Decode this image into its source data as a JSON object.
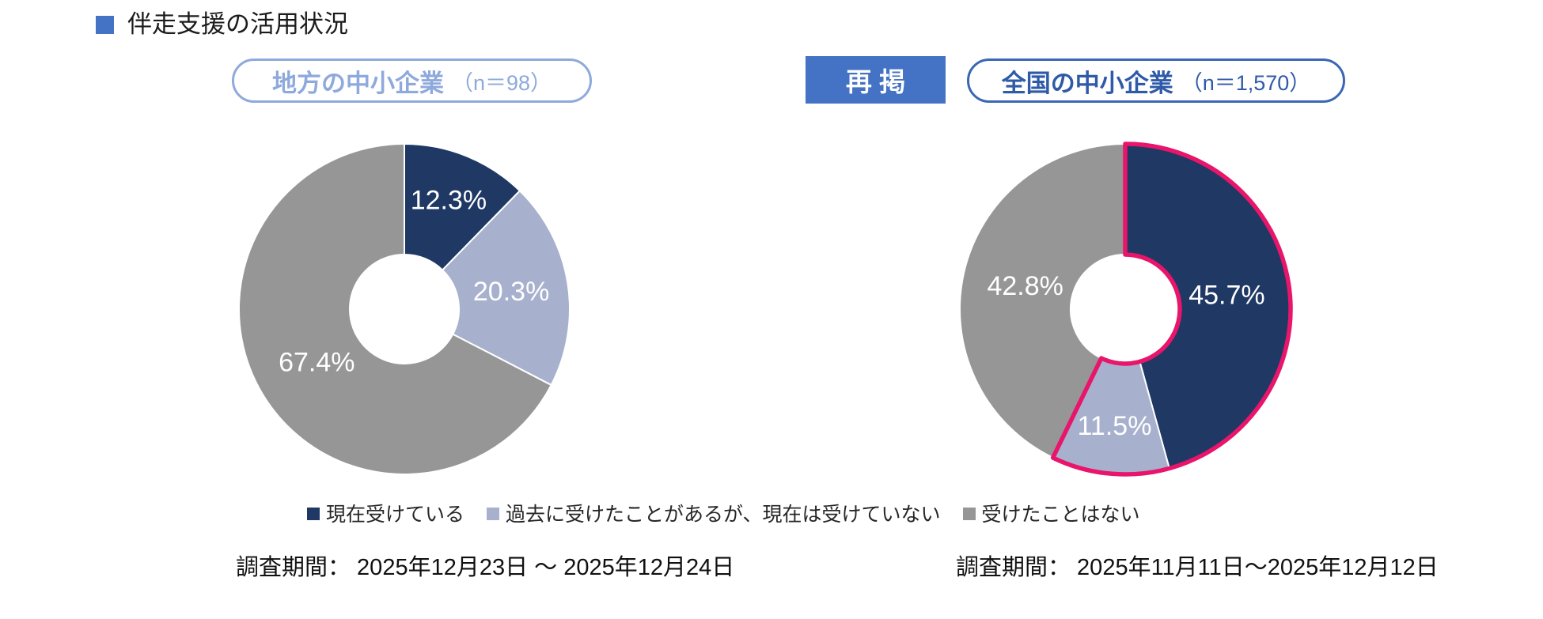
{
  "title": {
    "text": "伴走支援の活用状況"
  },
  "colors": {
    "accent_blue": "#4472c4",
    "pill_left_border": "#8ea9dc",
    "pill_left_text": "#8ea9dc",
    "pill_right_border": "#3a67b5",
    "pill_right_text": "#2f5aa8",
    "highlight_pink": "#e8156b",
    "navy": "#1f3864",
    "light_blue": "#a7b1cd",
    "gray": "#969696"
  },
  "left_panel": {
    "pill_label": "地方の中小企業",
    "pill_n": "（n＝98）",
    "caption": "調査期間： 2025年12月23日 〜 2025年12月24日"
  },
  "right_panel": {
    "badge": "再掲",
    "pill_label": "全国の中小企業",
    "pill_n": "（n＝1,570）",
    "caption": "調査期間： 2025年11月11日～2025年12月12日"
  },
  "legend": {
    "items": [
      {
        "label": "現在受けている",
        "color": "#1f3864"
      },
      {
        "label": "過去に受けたことがあるが、現在は受けていない",
        "color": "#a7b1cd"
      },
      {
        "label": "受けたことはない",
        "color": "#969696"
      }
    ]
  },
  "chart_data": [
    {
      "type": "pie",
      "subtype": "donut",
      "title": "地方の中小企業（n＝98）",
      "categories": [
        "現在受けている",
        "過去に受けたことがあるが、現在は受けていない",
        "受けたことはない"
      ],
      "values": [
        12.3,
        20.3,
        67.4
      ],
      "labels": [
        "12.3%",
        "20.3%",
        "67.4%"
      ],
      "colors": [
        "#1f3864",
        "#a7b1cd",
        "#969696"
      ],
      "label_color": "#ffffff",
      "start_angle_deg": 0,
      "direction": "clockwise",
      "hole_ratio": 0.33
    },
    {
      "type": "pie",
      "subtype": "donut",
      "title": "全国の中小企業（n＝1,570）",
      "categories": [
        "現在受けている",
        "過去に受けたことがあるが、現在は受けていない",
        "受けたことはない"
      ],
      "values": [
        45.7,
        11.5,
        42.8
      ],
      "labels": [
        "45.7%",
        "11.5%",
        "42.8%"
      ],
      "colors": [
        "#1f3864",
        "#a7b1cd",
        "#969696"
      ],
      "label_color": "#ffffff",
      "start_angle_deg": 0,
      "direction": "clockwise",
      "hole_ratio": 0.33,
      "highlight": {
        "slice_indices": [
          0,
          1
        ],
        "color": "#e8156b",
        "stroke_width": 5.5
      }
    }
  ]
}
